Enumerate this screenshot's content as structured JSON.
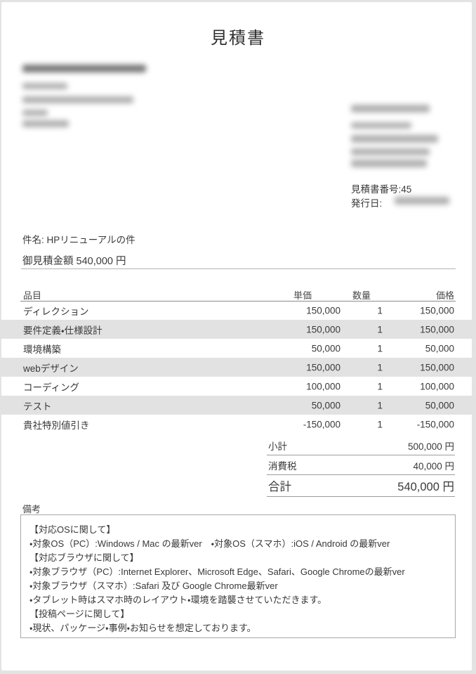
{
  "document": {
    "title": "見積書",
    "estimate_number": "見積書番号:45",
    "issue_date_label": "発行日:",
    "subject": "件名: HPリニューアルの件",
    "amount_line": "御見積金額 540,000 円"
  },
  "table": {
    "headers": {
      "item": "品目",
      "unit_price": "単価",
      "quantity": "数量",
      "price": "価格"
    },
    "rows": [
      {
        "item": "ディレクション",
        "unit_price": "150,000",
        "quantity": "1",
        "price": "150,000",
        "shaded": false
      },
      {
        "item": "要件定義・仕様設計",
        "unit_price": "150,000",
        "quantity": "1",
        "price": "150,000",
        "shaded": true
      },
      {
        "item": "環境構築",
        "unit_price": "50,000",
        "quantity": "1",
        "price": "50,000",
        "shaded": false
      },
      {
        "item": "webデザイン",
        "unit_price": "150,000",
        "quantity": "1",
        "price": "150,000",
        "shaded": true
      },
      {
        "item": "コーディング",
        "unit_price": "100,000",
        "quantity": "1",
        "price": "100,000",
        "shaded": false
      },
      {
        "item": "テスト",
        "unit_price": "50,000",
        "quantity": "1",
        "price": "50,000",
        "shaded": true
      },
      {
        "item": "貴社特別値引き",
        "unit_price": "-150,000",
        "quantity": "1",
        "price": "-150,000",
        "shaded": false
      }
    ]
  },
  "totals": {
    "subtotal": {
      "label": "小計",
      "value": "500,000 円"
    },
    "tax": {
      "label": "消費税",
      "value": "40,000 円"
    },
    "total": {
      "label": "合計",
      "value": "540,000 円"
    }
  },
  "remarks": {
    "label": "備考",
    "lines": [
      "【対応OSに関して】",
      "・対象OS（PC）:Windows / Mac の最新ver　・対象OS（スマホ）:iOS / Android の最新ver",
      "【対応ブラウザに関して】",
      "・対象ブラウザ（PC）:Internet Explorer、Microsoft Edge、Safari、Google Chromeの最新ver",
      "・対象ブラウザ（スマホ）:Safari 及び Google Chrome最新ver",
      "・タブレット時はスマホ時のレイアウト・環境を踏襲させていただきます。",
      "【投稿ページに関して】",
      "・現状、パッケージ・事例・お知らせを想定しております。"
    ]
  },
  "colors": {
    "text": "#3a3a3a",
    "row_shade": "#e2e2e2",
    "rule": "#9c9c9c",
    "box_border": "#a8a8a8",
    "page_background": "#e3e3e3"
  }
}
